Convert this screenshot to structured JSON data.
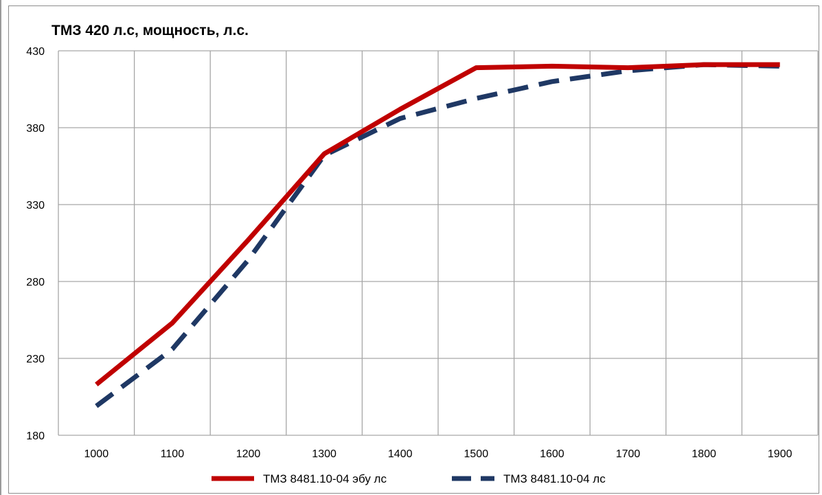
{
  "chart_data": {
    "type": "line",
    "title": "ТМЗ 420 л.с, мощность, л.с.",
    "xlabel": "",
    "ylabel": "",
    "x": [
      1000,
      1100,
      1200,
      1300,
      1400,
      1500,
      1600,
      1700,
      1800,
      1900
    ],
    "xtick_labels": [
      "1000",
      "1100",
      "1200",
      "1300",
      "1400",
      "1500",
      "1600",
      "1700",
      "1800",
      "1900"
    ],
    "ylim": [
      180,
      430
    ],
    "yticks": [
      180,
      230,
      280,
      330,
      380,
      430
    ],
    "ytick_labels": [
      "180",
      "230",
      "280",
      "330",
      "380",
      "430"
    ],
    "grid": true,
    "legend_position": "bottom",
    "series": [
      {
        "name": "ТМЗ 8481.10-04 эбу лс",
        "values": [
          213,
          253,
          307,
          363,
          392,
          419,
          420,
          419,
          421,
          421
        ],
        "color": "#c00000",
        "style": "solid"
      },
      {
        "name": "ТМЗ 8481.10-04 лс",
        "values": [
          199,
          236,
          294,
          362,
          386,
          399,
          410,
          417,
          421,
          420
        ],
        "color": "#1f3864",
        "style": "dashed"
      }
    ]
  }
}
